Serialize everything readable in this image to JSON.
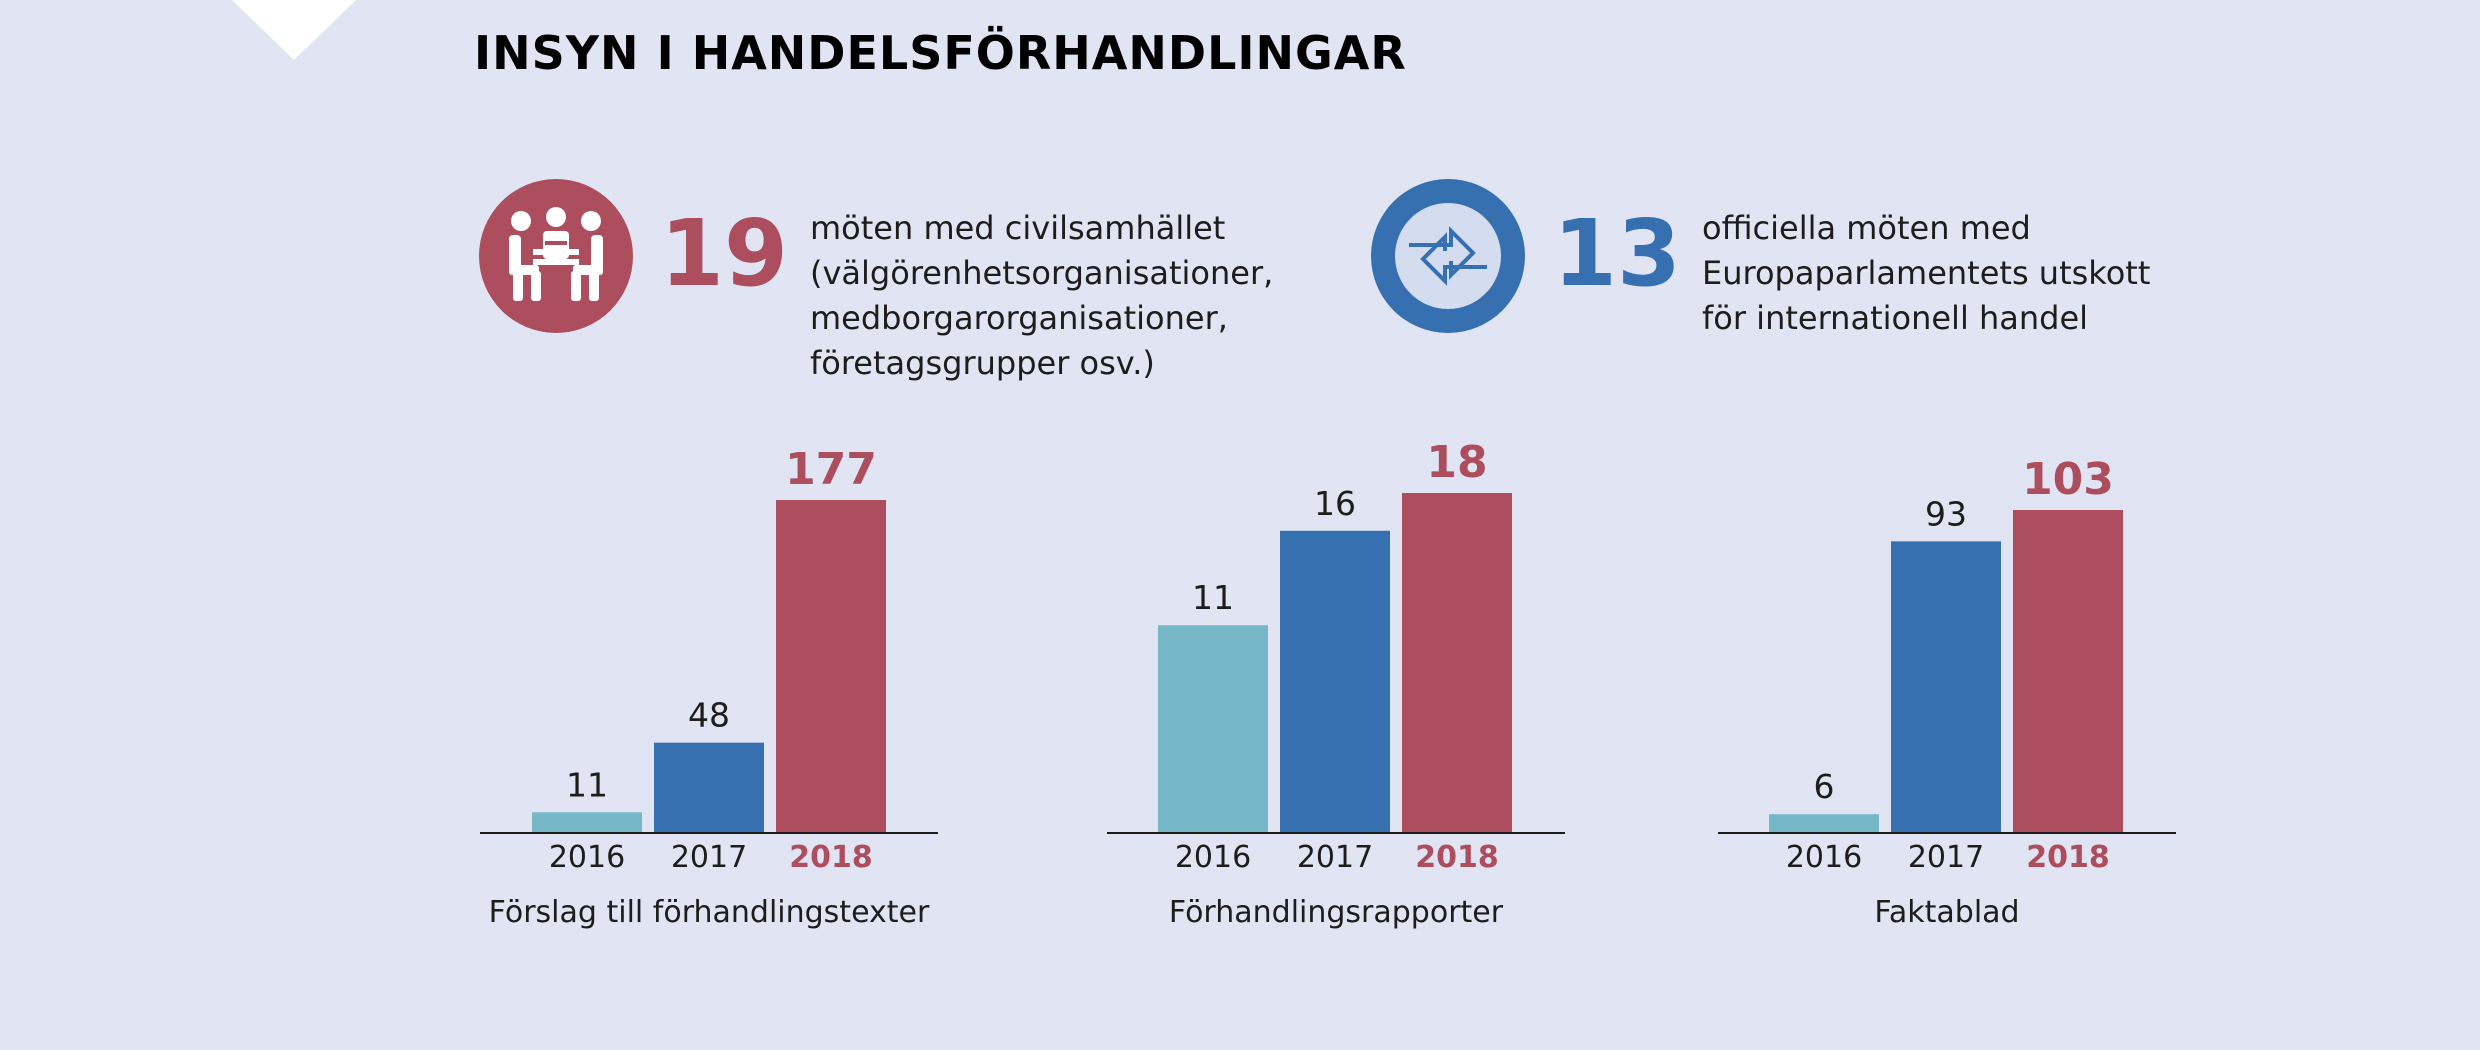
{
  "title": "INSYN I HANDELSFÖRHANDLINGAR",
  "stats": [
    {
      "number": "19",
      "description": "möten med civilsamhället\n(välgörenhetsorganisationer,\nmedborgarorganisationer,\nföretagsgrupper osv.)",
      "icon": "meeting-people-icon",
      "color": "#ac4e5e"
    },
    {
      "number": "13",
      "description": "officiella möten med\nEuropaparlamentets utskott\nför internationell handel",
      "icon": "exchange-arrows-icon",
      "color": "#3770b0"
    }
  ],
  "colors": {
    "y2016": "#76b8c8",
    "y2017": "#3770b0",
    "y2018": "#ac4e5e",
    "baseline": "#1d1d1b"
  },
  "chart_data": [
    {
      "type": "bar",
      "title": "Förslag till förhandlingstexter",
      "categories": [
        "2016",
        "2017",
        "2018"
      ],
      "values": [
        11,
        48,
        177
      ],
      "highlight": "2018"
    },
    {
      "type": "bar",
      "title": "Förhandlingsrapporter",
      "categories": [
        "2016",
        "2017",
        "2018"
      ],
      "values": [
        11,
        16,
        18
      ],
      "highlight": "2018"
    },
    {
      "type": "bar",
      "title": "Faktablad",
      "categories": [
        "2016",
        "2017",
        "2018"
      ],
      "values": [
        6,
        93,
        103
      ],
      "highlight": "2018"
    }
  ]
}
